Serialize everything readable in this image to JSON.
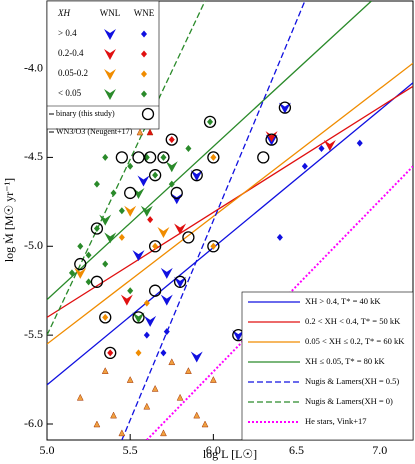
{
  "chart_data": {
    "type": "scatter",
    "x_label": "log L  [L☉]",
    "y_label": "log Ṁ [M☉ yr⁻¹]",
    "xlim": [
      5.0,
      7.2
    ],
    "ylim": [
      -6.09,
      -3.62
    ],
    "xticks": [
      {
        "value": 5,
        "label": "5.0"
      },
      5.5,
      {
        "value": 6,
        "label": "6.0"
      },
      6.5,
      {
        "value": 7,
        "label": "7.0"
      }
    ],
    "yticks": [
      {
        "value": -4,
        "label": "-4.0"
      },
      -4.5,
      {
        "value": -5,
        "label": "-5.0"
      },
      -5.5,
      {
        "value": -6,
        "label": "-6.0"
      }
    ],
    "legend_title": "XH",
    "series": [
      {
        "name": "> 0.4",
        "class": "WNL",
        "marker": "triangle",
        "color": "#1010e0",
        "x": [
          5.58,
          5.78,
          5.9,
          5.72,
          5.72,
          5.62,
          5.8,
          5.9,
          6.15,
          6.35,
          6.43,
          5.55
        ],
        "values": [
          -4.63,
          -4.73,
          -4.6,
          -5.15,
          -5.3,
          -5.42,
          -5.2,
          -5.62,
          -5.5,
          -4.4,
          -4.22,
          -5.05
        ]
      },
      {
        "name": "> 0.4",
        "class": "WNE",
        "marker": "diamond",
        "color": "#1010e0",
        "x": [
          5.72,
          6.55,
          6.65,
          6.88,
          6.4,
          5.6,
          5.7
        ],
        "values": [
          -5.48,
          -4.55,
          -4.45,
          -4.42,
          -4.95,
          -5.5,
          -5.6
        ]
      },
      {
        "name": "0.2-0.4",
        "class": "WNL",
        "marker": "triangle",
        "color": "#e01010",
        "x": [
          5.48,
          5.8,
          6.35,
          6.7
        ],
        "values": [
          -5.3,
          -4.9,
          -4.38,
          -4.43
        ]
      },
      {
        "name": "0.2-0.4",
        "class": "WNE",
        "marker": "diamond",
        "color": "#e01010",
        "x": [
          5.38,
          5.75,
          5.62
        ],
        "values": [
          -5.6,
          -4.4,
          -4.85
        ]
      },
      {
        "name": "0.05-0.2",
        "class": "WNL",
        "marker": "triangle",
        "color": "#f08c00",
        "x": [
          5.2,
          5.7,
          5.5
        ],
        "values": [
          -5.15,
          -4.92,
          -4.8
        ]
      },
      {
        "name": "0.05-0.2",
        "class": "WNE",
        "marker": "diamond",
        "color": "#f08c00",
        "x": [
          5.35,
          5.6,
          5.65,
          6.0,
          6.0,
          5.45,
          5.55
        ],
        "values": [
          -5.4,
          -5.32,
          -5.0,
          -4.5,
          -5.0,
          -4.95,
          -5.6
        ]
      },
      {
        "name": "< 0.05",
        "class": "WNL",
        "marker": "triangle",
        "color": "#2a8a2a",
        "x": [
          5.35,
          5.38,
          5.55,
          5.75,
          5.55,
          5.6
        ],
        "values": [
          -4.85,
          -4.95,
          -4.7,
          -4.55,
          -5.4,
          -4.8
        ]
      },
      {
        "name": "< 0.05",
        "class": "WNE",
        "marker": "diamond",
        "color": "#2a8a2a",
        "x": [
          5.15,
          5.2,
          5.25,
          5.3,
          5.35,
          5.4,
          5.45,
          5.5,
          5.6,
          5.65,
          5.7,
          5.75,
          5.85,
          5.98,
          5.3,
          5.25,
          5.35,
          5.5
        ],
        "values": [
          -5.15,
          -5.0,
          -5.05,
          -4.9,
          -4.5,
          -4.7,
          -4.8,
          -4.55,
          -4.5,
          -4.6,
          -4.5,
          -4.65,
          -4.45,
          -4.3,
          -4.65,
          -5.2,
          -5.1,
          -5.25
        ]
      },
      {
        "name": "binary (this study)",
        "marker": "circle",
        "color": "#000000",
        "x": [
          5.2,
          5.3,
          5.3,
          5.35,
          5.38,
          5.45,
          5.5,
          5.55,
          5.62,
          5.65,
          5.7,
          5.78,
          5.75,
          5.9,
          5.85,
          6.0,
          6.0,
          6.3,
          5.55,
          5.65,
          5.8,
          6.15,
          6.35,
          6.43,
          5.98,
          5.65
        ],
        "values": [
          -5.1,
          -4.9,
          -5.2,
          -5.4,
          -5.6,
          -4.5,
          -4.7,
          -4.5,
          -4.5,
          -4.6,
          -4.5,
          -4.7,
          -4.4,
          -4.6,
          -4.95,
          -4.5,
          -5.0,
          -4.5,
          -5.4,
          -5.25,
          -5.2,
          -5.5,
          -4.4,
          -4.22,
          -4.3,
          -5.0
        ]
      },
      {
        "name": "WN3/O3 (Neugent+17)",
        "marker": "small-triangle",
        "color": "#f0a040",
        "x": [
          5.2,
          5.3,
          5.35,
          5.4,
          5.45,
          5.5,
          5.6,
          5.65,
          5.7,
          5.8,
          5.85,
          5.9,
          5.95,
          6.0,
          5.75
        ],
        "values": [
          -5.85,
          -6.0,
          -5.7,
          -5.95,
          -6.05,
          -5.75,
          -5.9,
          -5.8,
          -6.05,
          -5.85,
          -5.7,
          -5.95,
          -6.0,
          -5.75,
          -5.65
        ]
      }
    ],
    "lines": [
      {
        "name": "XH > 0.4, T* = 40 kK",
        "color": "#1010e0",
        "dash": "solid",
        "x": [
          5.0,
          7.2
        ],
        "values": [
          -5.78,
          -4.08
        ]
      },
      {
        "name": "0.2 < XH < 0.4, T* = 50 kK",
        "color": "#e01010",
        "dash": "solid",
        "x": [
          5.0,
          7.2
        ],
        "values": [
          -5.4,
          -4.1
        ]
      },
      {
        "name": "0.05 < XH ≤ 0.2, T* = 60 kK",
        "color": "#f08c00",
        "dash": "solid",
        "x": [
          5.0,
          7.2
        ],
        "values": [
          -5.55,
          -3.97
        ]
      },
      {
        "name": "XH ≤ 0.05, T* = 80 kK",
        "color": "#2a8a2a",
        "dash": "solid",
        "x": [
          5.0,
          6.95
        ],
        "values": [
          -5.3,
          -3.62
        ]
      },
      {
        "name": "Nugis & Lamers(XH = 0.5)",
        "color": "#1010e0",
        "dash": "dashed",
        "x": [
          5.45,
          6.55
        ],
        "values": [
          -6.09,
          -3.62
        ]
      },
      {
        "name": "Nugis & Lamers(XH = 0)",
        "color": "#2a8a2a",
        "dash": "dashed",
        "x": [
          5.0,
          5.95
        ],
        "values": [
          -5.5,
          -3.62
        ]
      },
      {
        "name": "He stars, Vink+17",
        "color": "#ff00ff",
        "dash": "dotted",
        "x": [
          5.6,
          7.2
        ],
        "values": [
          -6.09,
          -4.55
        ]
      }
    ]
  }
}
